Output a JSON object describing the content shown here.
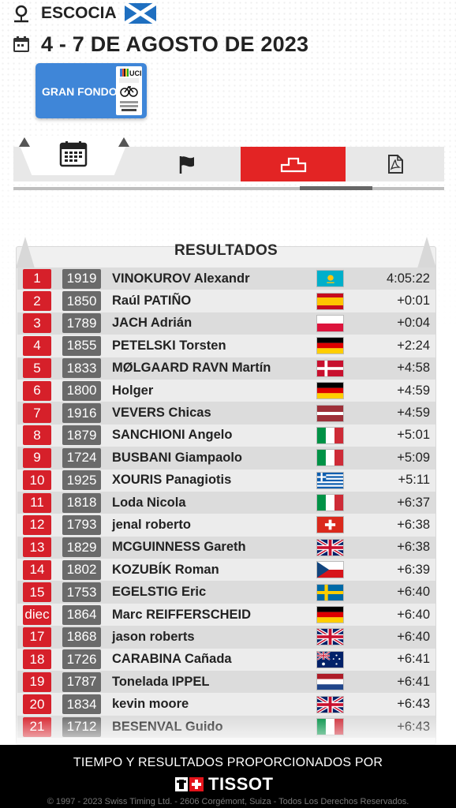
{
  "header": {
    "location": "ESCOCIA",
    "dates": "4 - 7 DE AGOSTO DE 2023"
  },
  "event_badge": {
    "label": "GRAN FONDO"
  },
  "tabs": [
    {
      "name": "calendar",
      "icon": "calendar-icon"
    },
    {
      "name": "start",
      "icon": "flag-icon"
    },
    {
      "name": "results",
      "icon": "podium-icon",
      "active": true
    },
    {
      "name": "pdf",
      "icon": "pdf-icon"
    }
  ],
  "accent_color": "#e32424",
  "results": {
    "title": "RESULTADOS",
    "rows": [
      {
        "pos": "1",
        "bib": "1919",
        "name": "VINOKUROV Alexandr",
        "flag": "KAZ",
        "time": "4:05:22"
      },
      {
        "pos": "2",
        "bib": "1850",
        "name": "Raúl PATIÑO",
        "flag": "ESP",
        "time": "+0:01"
      },
      {
        "pos": "3",
        "bib": "1789",
        "name": "JACH Adrián",
        "flag": "POL",
        "time": "+0:04"
      },
      {
        "pos": "4",
        "bib": "1855",
        "name": "PETELSKI Torsten",
        "flag": "GER",
        "time": "+2:24"
      },
      {
        "pos": "5",
        "bib": "1833",
        "name": "MØLGAARD RAVN Martín",
        "flag": "DEN",
        "time": "+4:58"
      },
      {
        "pos": "6",
        "bib": "1800",
        "name": "Holger",
        "flag": "GER",
        "time": "+4:59"
      },
      {
        "pos": "7",
        "bib": "1916",
        "name": "VEVERS Chicas",
        "flag": "LAT",
        "time": "+4:59"
      },
      {
        "pos": "8",
        "bib": "1879",
        "name": "SANCHIONI Angelo",
        "flag": "ITA",
        "time": "+5:01"
      },
      {
        "pos": "9",
        "bib": "1724",
        "name": "BUSBANI Giampaolo",
        "flag": "ITA",
        "time": "+5:09"
      },
      {
        "pos": "10",
        "bib": "1925",
        "name": "XOURIS Panagiotis",
        "flag": "GRE",
        "time": "+5:11"
      },
      {
        "pos": "11",
        "bib": "1818",
        "name": "Loda Nicola",
        "flag": "ITA",
        "time": "+6:37"
      },
      {
        "pos": "12",
        "bib": "1793",
        "name": "jenal roberto",
        "flag": "SUI",
        "time": "+6:38"
      },
      {
        "pos": "13",
        "bib": "1829",
        "name": "MCGUINNESS Gareth",
        "flag": "GBR",
        "time": "+6:38"
      },
      {
        "pos": "14",
        "bib": "1802",
        "name": "KOZUBÍK Roman",
        "flag": "CZE",
        "time": "+6:39"
      },
      {
        "pos": "15",
        "bib": "1753",
        "name": "EGELSTIG Eric",
        "flag": "SWE",
        "time": "+6:40"
      },
      {
        "pos": "diec",
        "bib": "1864",
        "name": "Marc REIFFERSCHEID",
        "flag": "GER",
        "time": "+6:40"
      },
      {
        "pos": "17",
        "bib": "1868",
        "name": "jason roberts",
        "flag": "GBR",
        "time": "+6:40"
      },
      {
        "pos": "18",
        "bib": "1726",
        "name": "CARABINA Cañada",
        "flag": "AUS",
        "time": "+6:41"
      },
      {
        "pos": "19",
        "bib": "1787",
        "name": "Tonelada IPPEL",
        "flag": "NED",
        "time": "+6:41"
      },
      {
        "pos": "20",
        "bib": "1834",
        "name": "kevin moore",
        "flag": "GBR",
        "time": "+6:43"
      },
      {
        "pos": "21",
        "bib": "1712",
        "name": "BESENVAL Guido",
        "flag": "ITA",
        "time": "+6:43"
      }
    ]
  },
  "footer": {
    "provided_by": "TIEMPO Y RESULTADOS PROPORCIONADOS POR",
    "brand": "TISSOT",
    "copyright": "© 1997 - 2023 Swiss Timing Ltd. - 2606 Corgémont, Suiza - Todos Los Derechos Reservados."
  }
}
